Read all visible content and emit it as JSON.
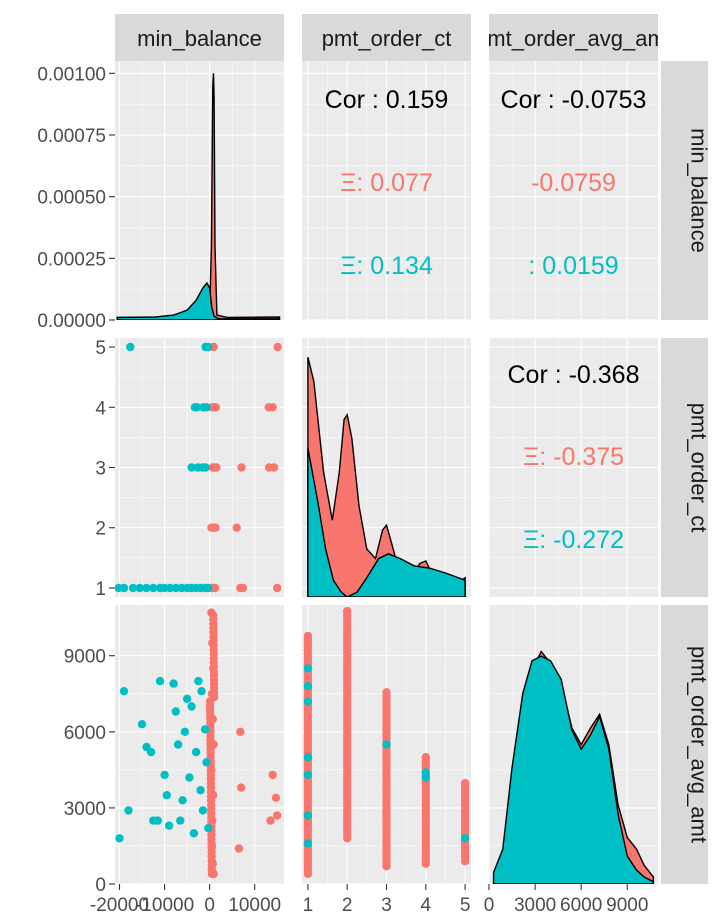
{
  "variables": [
    "min_balance",
    "pmt_order_ct",
    "pmt_order_avg_amt"
  ],
  "colors": {
    "group_a": "#F8766D",
    "group_b": "#00BFC4",
    "panel_bg": "#EBEBEB",
    "strip_bg": "#D9D9D9",
    "grid": "#FFFFFF",
    "text": "#4D4D4D"
  },
  "chart_data": {
    "type": "scatter",
    "subtype": "pairs-matrix",
    "grid": true,
    "legend": "none",
    "axes": {
      "min_balance": {
        "range": [
          -21000,
          16500
        ],
        "ticks": [
          -20000,
          -10000,
          0,
          10000
        ],
        "tick_labels": [
          "-20000",
          "-10000",
          "0",
          "10000"
        ]
      },
      "pmt_order_ct": {
        "range": [
          0.85,
          5.15
        ],
        "ticks": [
          1,
          2,
          3,
          4,
          5
        ],
        "tick_labels": [
          "1",
          "2",
          "3",
          "4",
          "5"
        ]
      },
      "pmt_order_avg_amt": {
        "range": [
          0,
          11000
        ],
        "ticks": [
          0,
          3000,
          6000,
          9000
        ],
        "tick_labels": [
          "0",
          "3000",
          "6000",
          "9000"
        ]
      },
      "density_min_balance": {
        "range": [
          0,
          0.00105
        ],
        "ticks": [
          0,
          0.00025,
          0.0005,
          0.00075,
          0.001
        ],
        "tick_labels": [
          "0.00000",
          "0.00025",
          "0.00050",
          "0.00075",
          "0.00100"
        ]
      }
    },
    "correlations": [
      {
        "pair": [
          "pmt_order_ct",
          "min_balance"
        ],
        "overall": "Cor : 0.159",
        "group_a": "0.077",
        "group_a_prefix": "Ξ: ",
        "group_b": "0.134",
        "group_b_prefix": "Ξ: "
      },
      {
        "pair": [
          "pmt_order_avg_amt",
          "min_balance"
        ],
        "overall": "Cor : -0.0753",
        "group_a": "-0.0759",
        "group_a_prefix": "",
        "group_b": "0.0159",
        "group_b_prefix": ": "
      },
      {
        "pair": [
          "pmt_order_avg_amt",
          "pmt_order_ct"
        ],
        "overall": "Cor : -0.368",
        "group_a": "-0.375",
        "group_a_prefix": "Ξ: ",
        "group_b": "-0.272",
        "group_b_prefix": "Ξ: "
      }
    ],
    "density_min_balance": {
      "group_a": [
        [
          -20500,
          1e-05
        ],
        [
          -5000,
          1e-05
        ],
        [
          -1200,
          1.2e-05
        ],
        [
          0,
          2e-05
        ],
        [
          400,
          0.0003
        ],
        [
          700,
          0.00095
        ],
        [
          850,
          0.001
        ],
        [
          1000,
          0.0009
        ],
        [
          1200,
          0.0003
        ],
        [
          1600,
          2e-05
        ],
        [
          4000,
          1e-05
        ],
        [
          15500,
          1.2e-05
        ]
      ],
      "group_b": [
        [
          -20500,
          1e-05
        ],
        [
          -12000,
          1.2e-05
        ],
        [
          -8000,
          2e-05
        ],
        [
          -5000,
          4e-05
        ],
        [
          -3000,
          8e-05
        ],
        [
          -1500,
          0.00013
        ],
        [
          -600,
          0.00015
        ],
        [
          0,
          0.00013
        ],
        [
          500,
          5e-05
        ],
        [
          1000,
          1.5e-05
        ],
        [
          2000,
          5e-06
        ],
        [
          15500,
          5e-06
        ]
      ]
    },
    "density_pmt_order_ct": {
      "group_a": [
        [
          1,
          1.0
        ],
        [
          1.15,
          0.9
        ],
        [
          1.4,
          0.52
        ],
        [
          1.62,
          0.32
        ],
        [
          1.8,
          0.52
        ],
        [
          1.92,
          0.74
        ],
        [
          2,
          0.76
        ],
        [
          2.12,
          0.66
        ],
        [
          2.3,
          0.38
        ],
        [
          2.5,
          0.2
        ],
        [
          2.72,
          0.16
        ],
        [
          2.9,
          0.28
        ],
        [
          3,
          0.3
        ],
        [
          3.12,
          0.23
        ],
        [
          3.35,
          0.09
        ],
        [
          3.6,
          0.07
        ],
        [
          3.85,
          0.14
        ],
        [
          4,
          0.15
        ],
        [
          4.15,
          0.1
        ],
        [
          4.45,
          0.03
        ],
        [
          4.75,
          0.05
        ],
        [
          5,
          0.08
        ]
      ],
      "group_b": [
        [
          1,
          0.62
        ],
        [
          1.25,
          0.4
        ],
        [
          1.45,
          0.2
        ],
        [
          1.65,
          0.07
        ],
        [
          1.85,
          0.02
        ],
        [
          2,
          0.0
        ],
        [
          2.25,
          0.02
        ],
        [
          2.5,
          0.08
        ],
        [
          2.8,
          0.16
        ],
        [
          3.05,
          0.18
        ],
        [
          3.35,
          0.16
        ],
        [
          3.7,
          0.13
        ],
        [
          4.1,
          0.12
        ],
        [
          4.5,
          0.1
        ],
        [
          5,
          0.07
        ]
      ]
    },
    "density_pmt_order_avg_amt": {
      "group_a": [
        [
          300,
          0.03
        ],
        [
          900,
          0.08
        ],
        [
          1500,
          0.35
        ],
        [
          2200,
          0.7
        ],
        [
          2800,
          0.92
        ],
        [
          3400,
          1.0
        ],
        [
          4000,
          0.95
        ],
        [
          4700,
          0.86
        ],
        [
          5400,
          0.67
        ],
        [
          6000,
          0.6
        ],
        [
          6600,
          0.67
        ],
        [
          7200,
          0.73
        ],
        [
          7800,
          0.6
        ],
        [
          8400,
          0.34
        ],
        [
          9000,
          0.2
        ],
        [
          9600,
          0.15
        ],
        [
          10100,
          0.08
        ],
        [
          10700,
          0.03
        ]
      ],
      "group_b": [
        [
          300,
          0.05
        ],
        [
          900,
          0.15
        ],
        [
          1500,
          0.5
        ],
        [
          2200,
          0.82
        ],
        [
          2800,
          0.96
        ],
        [
          3400,
          0.98
        ],
        [
          4000,
          0.96
        ],
        [
          4700,
          0.88
        ],
        [
          5400,
          0.66
        ],
        [
          6000,
          0.58
        ],
        [
          6600,
          0.64
        ],
        [
          7200,
          0.72
        ],
        [
          7800,
          0.58
        ],
        [
          8400,
          0.3
        ],
        [
          9000,
          0.12
        ],
        [
          9600,
          0.06
        ],
        [
          10100,
          0.03
        ],
        [
          10700,
          0.01
        ]
      ]
    },
    "scatter_ct_vs_balance": {
      "group_a": [
        [
          600,
          1
        ],
        [
          1200,
          1
        ],
        [
          6800,
          1
        ],
        [
          7400,
          1
        ],
        [
          15000,
          1
        ],
        [
          400,
          2
        ],
        [
          900,
          2
        ],
        [
          1300,
          2
        ],
        [
          6000,
          2
        ],
        [
          700,
          3
        ],
        [
          1100,
          3
        ],
        [
          1500,
          3
        ],
        [
          7100,
          3
        ],
        [
          13200,
          3
        ],
        [
          14300,
          3
        ],
        [
          500,
          4
        ],
        [
          1000,
          4
        ],
        [
          1400,
          4
        ],
        [
          13100,
          4
        ],
        [
          14000,
          4
        ],
        [
          900,
          5
        ],
        [
          15100,
          5
        ]
      ],
      "group_b": [
        [
          -20200,
          1
        ],
        [
          -19000,
          1
        ],
        [
          -17000,
          1
        ],
        [
          -15500,
          1
        ],
        [
          -14000,
          1
        ],
        [
          -12500,
          1
        ],
        [
          -11000,
          1
        ],
        [
          -10000,
          1
        ],
        [
          -8800,
          1
        ],
        [
          -7500,
          1
        ],
        [
          -6200,
          1
        ],
        [
          -5000,
          1
        ],
        [
          -4000,
          1
        ],
        [
          -3000,
          1
        ],
        [
          -2000,
          1
        ],
        [
          -1000,
          1
        ],
        [
          -300,
          1
        ],
        [
          -2600,
          3
        ],
        [
          -1600,
          3
        ],
        [
          -900,
          3
        ],
        [
          -4000,
          3
        ],
        [
          -3300,
          4
        ],
        [
          -2800,
          4
        ],
        [
          -1400,
          4
        ],
        [
          -700,
          4
        ],
        [
          -17600,
          5
        ],
        [
          -900,
          5
        ],
        [
          -300,
          5
        ]
      ]
    },
    "scatter_amt_vs_balance": {
      "group_a": [
        [
          400,
          10700
        ],
        [
          600,
          9500
        ],
        [
          800,
          8500
        ],
        [
          500,
          7500
        ],
        [
          700,
          6500
        ],
        [
          900,
          5500
        ],
        [
          400,
          4500
        ],
        [
          800,
          3500
        ],
        [
          600,
          2500
        ],
        [
          500,
          1500
        ],
        [
          700,
          800
        ],
        [
          900,
          400
        ],
        [
          6800,
          6000
        ],
        [
          7000,
          3800
        ],
        [
          6500,
          1400
        ],
        [
          14000,
          4300
        ],
        [
          14700,
          3400
        ],
        [
          15000,
          2700
        ],
        [
          13500,
          2500
        ]
      ],
      "group_b": [
        [
          -20000,
          1800
        ],
        [
          -19000,
          7600
        ],
        [
          -18000,
          2900
        ],
        [
          -15000,
          6300
        ],
        [
          -14000,
          5400
        ],
        [
          -13000,
          5200
        ],
        [
          -11000,
          8000
        ],
        [
          -11500,
          2500
        ],
        [
          -12500,
          2500
        ],
        [
          -10000,
          4300
        ],
        [
          -9500,
          3500
        ],
        [
          -9000,
          2300
        ],
        [
          -8000,
          7900
        ],
        [
          -7500,
          6800
        ],
        [
          -7000,
          5500
        ],
        [
          -6500,
          2500
        ],
        [
          -6000,
          3300
        ],
        [
          -5500,
          6000
        ],
        [
          -5000,
          7300
        ],
        [
          -4500,
          4200
        ],
        [
          -4000,
          7000
        ],
        [
          -3500,
          2000
        ],
        [
          -3000,
          5200
        ],
        [
          -2500,
          8000
        ],
        [
          -2000,
          3700
        ],
        [
          -1500,
          2900
        ],
        [
          -1000,
          6100
        ],
        [
          -700,
          4800
        ],
        [
          -300,
          2200
        ],
        [
          -1800,
          7600
        ]
      ]
    },
    "scatter_amt_vs_ct": {
      "group_a_ranges": [
        [
          1,
          400,
          9800
        ],
        [
          2,
          1800,
          10800
        ],
        [
          3,
          700,
          7600
        ],
        [
          4,
          800,
          5000
        ],
        [
          5,
          900,
          4000
        ]
      ],
      "group_b": [
        [
          1,
          8500
        ],
        [
          1,
          7800
        ],
        [
          1,
          7200
        ],
        [
          1,
          5000
        ],
        [
          1,
          4300
        ],
        [
          1,
          2700
        ],
        [
          1,
          1600
        ],
        [
          3,
          5500
        ],
        [
          4,
          4400
        ],
        [
          4,
          4200
        ],
        [
          5,
          1800
        ]
      ]
    }
  }
}
